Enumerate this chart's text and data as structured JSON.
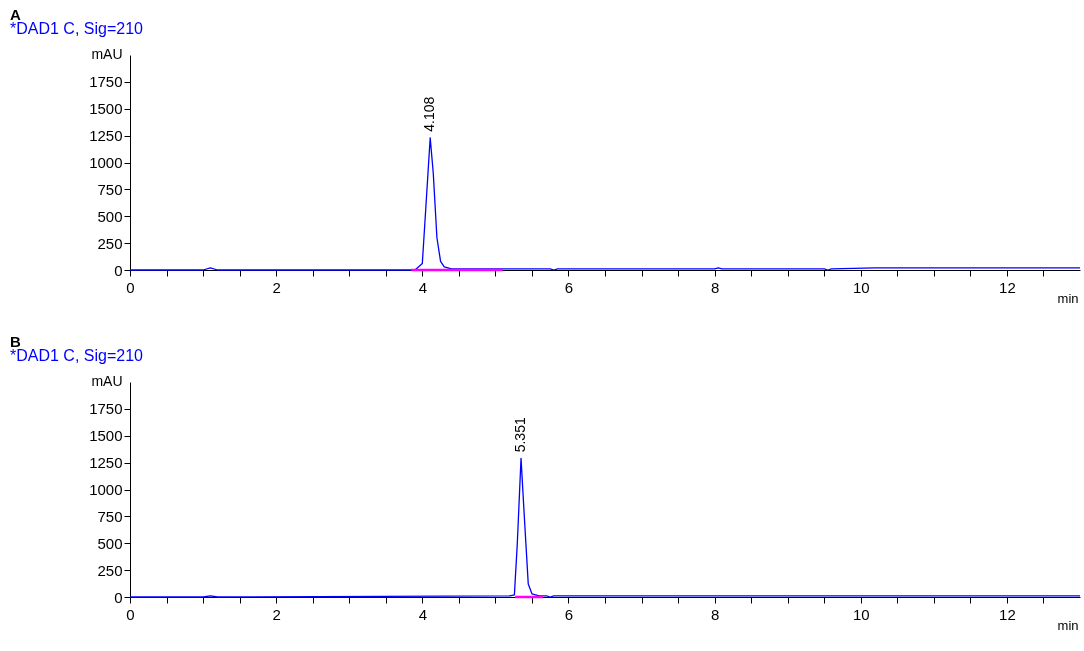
{
  "chart_data": [
    {
      "type": "line",
      "title": "A",
      "subtitle": "*DAD1 C, Sig=210",
      "xlabel": "min",
      "ylabel": "mAU",
      "xlim": [
        0,
        13
      ],
      "ylim": [
        0,
        2000
      ],
      "xticks": [
        0,
        {
          "value": 0.5,
          "label": null
        },
        {
          "value": 1,
          "label": null
        },
        {
          "value": 1.5,
          "label": null
        },
        2,
        {
          "value": 2.5,
          "label": null
        },
        {
          "value": 3,
          "label": null
        },
        {
          "value": 3.5,
          "label": null
        },
        4,
        {
          "value": 4.5,
          "label": null
        },
        {
          "value": 5,
          "label": null
        },
        {
          "value": 5.5,
          "label": null
        },
        6,
        {
          "value": 6.5,
          "label": null
        },
        {
          "value": 7,
          "label": null
        },
        {
          "value": 7.5,
          "label": null
        },
        8,
        {
          "value": 8.5,
          "label": null
        },
        {
          "value": 9,
          "label": null
        },
        {
          "value": 9.5,
          "label": null
        },
        10,
        {
          "value": 10.5,
          "label": null
        },
        {
          "value": 11,
          "label": null
        },
        {
          "value": 11.5,
          "label": null
        },
        12,
        {
          "value": 12.5,
          "label": null
        }
      ],
      "yticks": [
        0,
        250,
        500,
        750,
        1000,
        1250,
        1500,
        1750
      ],
      "grid": false,
      "series": [
        {
          "color": "#0000ff",
          "x": [
            0,
            1.0,
            1.1,
            1.2,
            3.9,
            4.0,
            4.05,
            4.108,
            4.15,
            4.2,
            4.25,
            4.3,
            4.4,
            5.0,
            5.75,
            5.8,
            5.85,
            8.0,
            8.05,
            8.1,
            9.5,
            9.55,
            9.6,
            10.2,
            13
          ],
          "values": [
            0,
            0,
            20,
            0,
            0,
            60,
            600,
            1230,
            900,
            300,
            80,
            30,
            10,
            10,
            10,
            0,
            10,
            10,
            20,
            10,
            10,
            0,
            10,
            20,
            20
          ]
        },
        {
          "color": "#ff00ff",
          "x": [
            3.85,
            5.1
          ],
          "values": [
            0,
            0
          ]
        }
      ],
      "annotations": [
        {
          "text": "4.108",
          "x": 4.108,
          "y": 1230
        }
      ]
    },
    {
      "type": "line",
      "title": "B",
      "subtitle": "*DAD1 C, Sig=210",
      "xlabel": "min",
      "ylabel": "mAU",
      "xlim": [
        0,
        13
      ],
      "ylim": [
        0,
        2000
      ],
      "xticks": [
        0,
        {
          "value": 0.5,
          "label": null
        },
        {
          "value": 1,
          "label": null
        },
        {
          "value": 1.5,
          "label": null
        },
        2,
        {
          "value": 2.5,
          "label": null
        },
        {
          "value": 3,
          "label": null
        },
        {
          "value": 3.5,
          "label": null
        },
        4,
        {
          "value": 4.5,
          "label": null
        },
        {
          "value": 5,
          "label": null
        },
        {
          "value": 5.5,
          "label": null
        },
        6,
        {
          "value": 6.5,
          "label": null
        },
        {
          "value": 7,
          "label": null
        },
        {
          "value": 7.5,
          "label": null
        },
        8,
        {
          "value": 8.5,
          "label": null
        },
        {
          "value": 9,
          "label": null
        },
        {
          "value": 9.5,
          "label": null
        },
        10,
        {
          "value": 10.5,
          "label": null
        },
        {
          "value": 11,
          "label": null
        },
        {
          "value": 11.5,
          "label": null
        },
        12,
        {
          "value": 12.5,
          "label": null
        }
      ],
      "yticks": [
        0,
        250,
        500,
        750,
        1000,
        1250,
        1500,
        1750
      ],
      "grid": false,
      "series": [
        {
          "color": "#0000ff",
          "x": [
            0,
            1.0,
            1.1,
            1.2,
            5.2,
            5.26,
            5.3,
            5.351,
            5.4,
            5.45,
            5.5,
            5.6,
            5.7,
            5.75,
            5.8,
            13
          ],
          "values": [
            0,
            0,
            10,
            0,
            10,
            20,
            500,
            1290,
            700,
            120,
            30,
            10,
            10,
            0,
            10,
            10
          ]
        },
        {
          "color": "#ff00ff",
          "x": [
            5.27,
            5.65
          ],
          "values": [
            0,
            0
          ]
        }
      ],
      "annotations": [
        {
          "text": "5.351",
          "x": 5.351,
          "y": 1290
        }
      ]
    }
  ]
}
